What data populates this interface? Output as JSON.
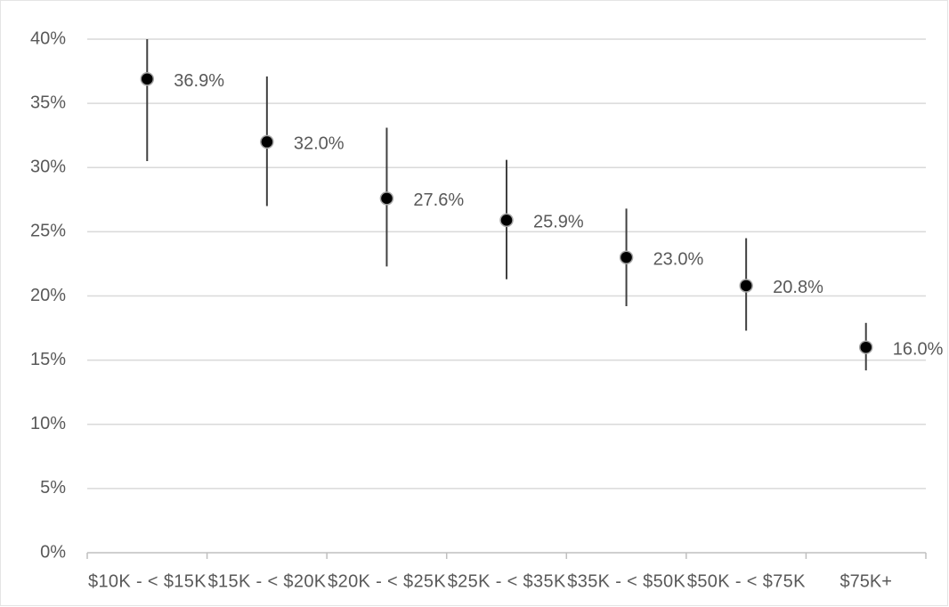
{
  "chart_data": {
    "type": "errorpoint",
    "categories": [
      "$10K - < $15K",
      "$15K - < $20K",
      "$20K - < $25K",
      "$25K - < $35K",
      "$35K - < $50K",
      "$50K - < $75K",
      "$75K+"
    ],
    "values": [
      36.9,
      32.0,
      27.6,
      25.9,
      23.0,
      20.8,
      16.0
    ],
    "value_labels": [
      "36.9%",
      "32.0%",
      "27.6%",
      "25.9%",
      "23.0%",
      "20.8%",
      "16.0%"
    ],
    "lower": [
      30.5,
      27.0,
      22.3,
      21.3,
      19.2,
      17.3,
      14.2
    ],
    "upper": [
      40.0,
      37.1,
      33.1,
      30.6,
      26.8,
      24.5,
      17.9
    ],
    "color": "#000000",
    "ylim": [
      0,
      40
    ],
    "yticks": [
      {
        "value": 0,
        "label": "0%"
      },
      {
        "value": 5,
        "label": "5%"
      },
      {
        "value": 10,
        "label": "10%"
      },
      {
        "value": 15,
        "label": "15%"
      },
      {
        "value": 20,
        "label": "20%"
      },
      {
        "value": 25,
        "label": "25%"
      },
      {
        "value": 30,
        "label": "30%"
      },
      {
        "value": 35,
        "label": "35%"
      },
      {
        "value": 40,
        "label": "40%"
      }
    ],
    "grid": true
  }
}
